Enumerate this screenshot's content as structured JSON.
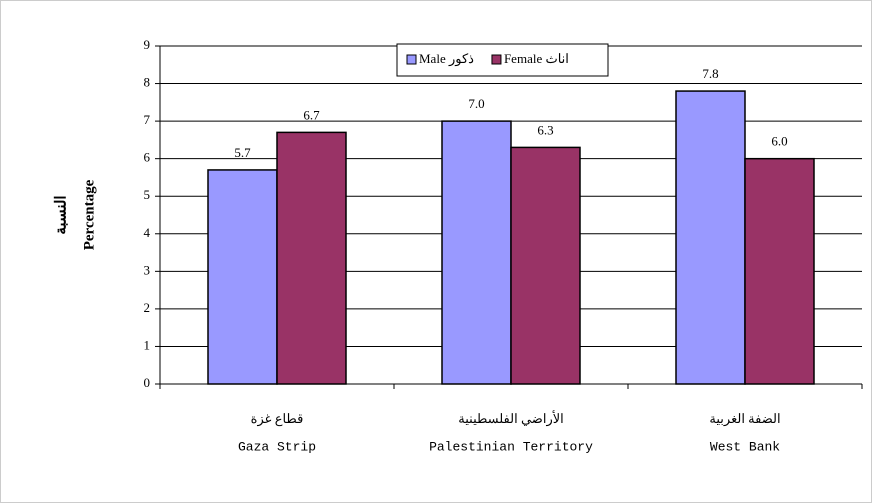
{
  "chart_data": {
    "type": "bar",
    "ylabel": "Percentage",
    "ylabel_ar": "النسبة",
    "categories": [
      "Gaza Strip",
      "Palestinian Territory",
      "West Bank"
    ],
    "categories_ar": [
      "قطاع غزة",
      "الأراضي الفلسطينية",
      "الضفة الغربية"
    ],
    "series": [
      {
        "name": "Male ذكور",
        "color": "#9999ff",
        "values": [
          5.7,
          7.0,
          7.8
        ],
        "value_labels": [
          "5.7",
          "7.0",
          "7.8"
        ]
      },
      {
        "name": "Female اناث",
        "color": "#993366",
        "values": [
          6.7,
          6.3,
          6.0
        ],
        "value_labels": [
          "6.7",
          "6.3",
          "6.0"
        ]
      }
    ],
    "ylim": [
      0,
      9
    ],
    "yticks": [
      0,
      1,
      2,
      3,
      4,
      5,
      6,
      7,
      8,
      9
    ],
    "grid": true,
    "legend": "top"
  }
}
